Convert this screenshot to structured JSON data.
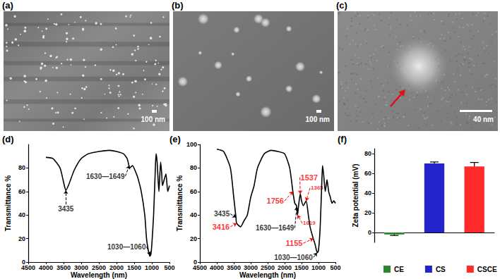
{
  "images": [
    {
      "label": "(a)",
      "scale_bar": "100 nm"
    },
    {
      "label": "(b)",
      "scale_bar": "100 nm"
    },
    {
      "label": "(c)",
      "scale_bar": "40 nm"
    }
  ],
  "chart_data": [
    {
      "label": "(d)",
      "type": "line",
      "color": "#000000",
      "x_label": "Wavelength (nm)",
      "y_label": "Transmittance %",
      "x": [
        4000,
        3800,
        3600,
        3500,
        3435,
        3350,
        3200,
        3000,
        2800,
        2500,
        2200,
        2000,
        1800,
        1700,
        1649,
        1630,
        1550,
        1450,
        1400,
        1300,
        1200,
        1150,
        1100,
        1060,
        1030,
        1000,
        950,
        900,
        880,
        850,
        800,
        780,
        750,
        720,
        700,
        650,
        600,
        550,
        500
      ],
      "values": [
        89,
        88,
        80,
        68,
        61,
        66,
        78,
        88,
        92,
        94,
        95,
        94,
        92,
        88,
        82,
        80,
        82,
        76,
        72,
        60,
        40,
        20,
        10,
        5,
        6,
        15,
        40,
        80,
        92,
        85,
        60,
        70,
        85,
        75,
        65,
        70,
        75,
        60,
        65
      ],
      "xlim": [
        4500,
        500
      ],
      "xticks": [
        4500,
        4000,
        3500,
        3000,
        2500,
        2000,
        1500,
        1000,
        500
      ],
      "ylim": [
        0,
        100
      ],
      "yticks": [
        0,
        20,
        40,
        60,
        80
      ],
      "grid": false,
      "annotations": [
        {
          "text": "3435",
          "x": 3435,
          "y": 61,
          "color": "#000000"
        },
        {
          "text": "1630—1649",
          "x": 1640,
          "y": 82,
          "color": "#000000"
        },
        {
          "text": "1030—1060",
          "x": 1045,
          "y": 6,
          "color": "#000000"
        }
      ]
    },
    {
      "label": "(e)",
      "type": "line",
      "color": "#000000",
      "x_label": "Wavelength (nm)",
      "y_label": "Transmittance %",
      "x": [
        4000,
        3800,
        3600,
        3500,
        3435,
        3416,
        3300,
        3200,
        3100,
        3000,
        2900,
        2800,
        2600,
        2400,
        2200,
        2000,
        1850,
        1756,
        1700,
        1649,
        1619,
        1600,
        1537,
        1500,
        1450,
        1365,
        1300,
        1250,
        1155,
        1100,
        1060,
        1030,
        1000,
        950,
        900,
        880,
        850,
        800,
        750,
        700,
        650,
        600,
        550,
        500
      ],
      "values": [
        96,
        94,
        80,
        55,
        38,
        33,
        30,
        35,
        40,
        55,
        65,
        80,
        92,
        95,
        94,
        92,
        80,
        60,
        50,
        48,
        40,
        45,
        58,
        52,
        48,
        52,
        40,
        30,
        20,
        15,
        10,
        8,
        10,
        30,
        70,
        82,
        75,
        60,
        70,
        60,
        55,
        50,
        52,
        50
      ],
      "xlim": [
        4500,
        500
      ],
      "xticks": [
        4500,
        4000,
        3500,
        3000,
        2500,
        2000,
        1500,
        1000,
        500
      ],
      "ylim": [
        0,
        100
      ],
      "yticks": [
        0,
        20,
        40,
        60,
        80,
        100
      ],
      "grid": false,
      "annotations": [
        {
          "text": "3435",
          "x": 3435,
          "y": 38,
          "color": "#000000"
        },
        {
          "text": "3416",
          "x": 3416,
          "y": 33,
          "color": "#ff0000"
        },
        {
          "text": "1630—1649",
          "x": 1640,
          "y": 47,
          "color": "#000000"
        },
        {
          "text": "1756",
          "x": 1756,
          "y": 60,
          "color": "#ff0000"
        },
        {
          "text": "1537",
          "x": 1537,
          "y": 58,
          "color": "#ff0000"
        },
        {
          "text": "1365",
          "x": 1365,
          "y": 52,
          "color": "#ff0000"
        },
        {
          "text": "1619",
          "x": 1619,
          "y": 40,
          "color": "#ff0000"
        },
        {
          "text": "1155",
          "x": 1155,
          "y": 20,
          "color": "#ff0000"
        },
        {
          "text": "1030—1060",
          "x": 1045,
          "y": 8,
          "color": "#000000"
        }
      ]
    },
    {
      "label": "(f)",
      "type": "bar",
      "y_label": "Zeta potential (mV)",
      "categories": [
        "CE",
        "CS",
        "CSCE"
      ],
      "values": [
        -2,
        70,
        67
      ],
      "errors": [
        1,
        1.5,
        4
      ],
      "colors": [
        "#2a8a2a",
        "#2424cc",
        "#ff2a2a"
      ],
      "ylim": [
        -10,
        85
      ],
      "yticks": [
        0,
        20,
        40,
        60,
        80
      ],
      "grid": false,
      "legend": "bottom",
      "tick_labels": "y"
    }
  ]
}
